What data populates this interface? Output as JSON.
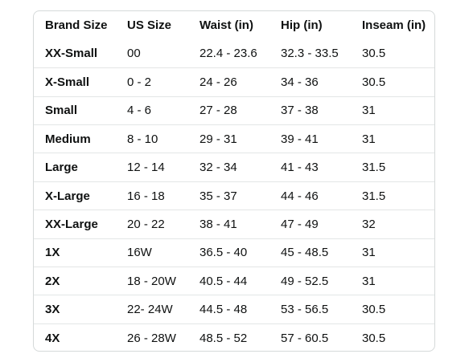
{
  "size_chart": {
    "headers": [
      "Brand Size",
      "US Size",
      "Waist (in)",
      "Hip (in)",
      "Inseam (in)"
    ],
    "rows": [
      [
        "XX-Small",
        "00",
        "22.4 - 23.6",
        "32.3 - 33.5",
        "30.5"
      ],
      [
        "X-Small",
        "0 - 2",
        "24 - 26",
        "34 - 36",
        "30.5"
      ],
      [
        "Small",
        "4 - 6",
        "27 - 28",
        "37 - 38",
        "31"
      ],
      [
        "Medium",
        "8 - 10",
        "29 - 31",
        "39 - 41",
        "31"
      ],
      [
        "Large",
        "12 - 14",
        "32 - 34",
        "41 - 43",
        "31.5"
      ],
      [
        "X-Large",
        "16 - 18",
        "35 - 37",
        "44 - 46",
        "31.5"
      ],
      [
        "XX-Large",
        "20 - 22",
        "38 - 41",
        "47 - 49",
        "32"
      ],
      [
        "1X",
        "16W",
        "36.5 - 40",
        "45 - 48.5",
        "31"
      ],
      [
        "2X",
        "18 - 20W",
        "40.5 - 44",
        "49 - 52.5",
        "31"
      ],
      [
        "3X",
        "22- 24W",
        "44.5 - 48",
        "53 - 56.5",
        "30.5"
      ],
      [
        "4X",
        "26 - 28W",
        "48.5 - 52",
        "57 - 60.5",
        "30.5"
      ]
    ]
  }
}
